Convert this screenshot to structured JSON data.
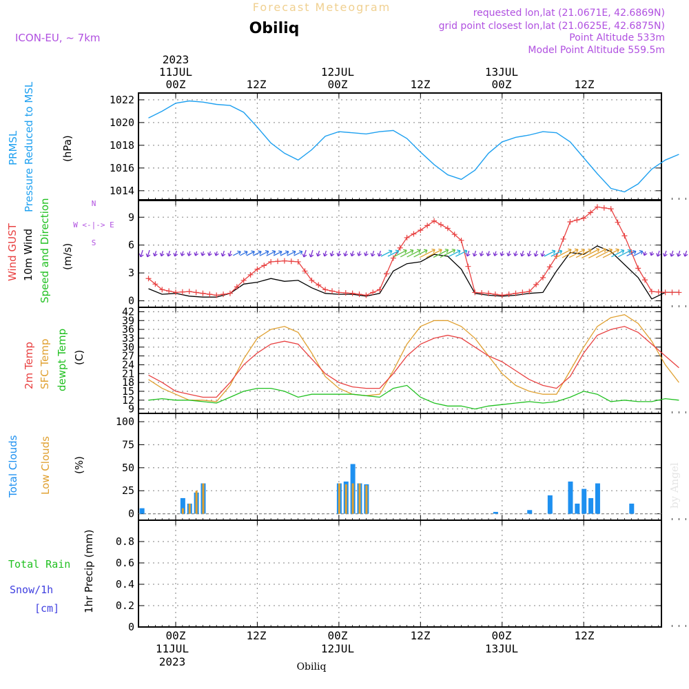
{
  "header": {
    "title": "Forecast Meteogram",
    "station": "Obiliq",
    "model": "ICON-EU, ~ 7km",
    "requested": "requested lon,lat (21.0671E, 42.6869N)",
    "grid_point": "grid point closest lon,lat (21.0625E, 42.6875N)",
    "point_altitude": "Point Altitude 533m",
    "model_altitude": "Model Point Altitude 559.5m"
  },
  "time_axis": {
    "top_year": "2023",
    "bottom_year": "2023",
    "ticks": [
      "00Z",
      "12Z",
      "00Z",
      "12Z",
      "00Z",
      "12Z"
    ],
    "dates": [
      "11JUL",
      "12JUL",
      "13JUL"
    ]
  },
  "footer": {
    "station": "Obiliq",
    "watermark": "by Angel"
  },
  "panels": {
    "pressure": {
      "label1": "PRMSL",
      "label2": "Pressure Reduced to MSL",
      "unit": "(hPa)"
    },
    "wind": {
      "label_gust": "Wind GUST",
      "label_wind": "10m Wind",
      "label_dir": "Speed and Direction",
      "unit": "(m/s)",
      "compass_n": "N",
      "compass_s": "S",
      "compass_ew": "W <-|-> E"
    },
    "temp": {
      "label_t2m": "2m Temp",
      "label_sfc": "SFC Temp",
      "label_dew": "dewpt Temp",
      "unit": "(C)"
    },
    "clouds": {
      "label_total": "Total Clouds",
      "label_low": "Low Clouds",
      "unit": "(%)"
    },
    "precip": {
      "label_rain": "Total  Rain",
      "label_snow": "Snow/1h",
      "label_cm": "[cm]",
      "unit": "1hr Precip (mm)"
    }
  },
  "colors": {
    "pressure": "#1ea0f0",
    "gust": "#e84040",
    "wind": "#000000",
    "t2m": "#e84040",
    "sfc": "#e0a030",
    "dew": "#20c020",
    "total_cloud": "#1e90f0",
    "low_cloud": "#e0a030",
    "rain": "#20c020",
    "snow": "#4040e0",
    "header_purple": "#b050e0",
    "title_gold": "#f0d090"
  },
  "chart_data": [
    {
      "type": "line",
      "name": "PRMSL",
      "unit": "hPa",
      "x_hours": [
        -4,
        -2,
        0,
        2,
        4,
        6,
        8,
        10,
        12,
        14,
        16,
        18,
        20,
        22,
        24,
        26,
        28,
        30,
        32,
        34,
        36,
        38,
        40,
        42,
        44,
        46,
        48,
        50,
        52,
        54,
        56,
        58,
        60,
        62,
        64,
        66,
        68,
        70,
        72,
        74
      ],
      "values": [
        1020.4,
        1021.0,
        1021.7,
        1021.9,
        1021.8,
        1021.6,
        1021.5,
        1020.9,
        1019.6,
        1018.2,
        1017.3,
        1016.7,
        1017.6,
        1018.8,
        1019.2,
        1019.1,
        1019.0,
        1019.2,
        1019.3,
        1018.6,
        1017.4,
        1016.3,
        1015.4,
        1015.0,
        1015.8,
        1017.3,
        1018.3,
        1018.7,
        1018.9,
        1019.2,
        1019.1,
        1018.3,
        1016.9,
        1015.5,
        1014.2,
        1013.9,
        1014.6,
        1015.9,
        1016.7,
        1017.2
      ],
      "ylim": [
        1013.2,
        1022.6
      ],
      "yticks": [
        1014,
        1016,
        1018,
        1020,
        1022
      ]
    },
    {
      "type": "line",
      "name": "Wind",
      "unit": "m/s",
      "x_hours": [
        -4,
        -2,
        0,
        2,
        4,
        6,
        8,
        10,
        12,
        14,
        16,
        18,
        20,
        22,
        24,
        26,
        28,
        30,
        32,
        34,
        36,
        38,
        40,
        42,
        44,
        46,
        48,
        50,
        52,
        54,
        56,
        58,
        60,
        62,
        64,
        66,
        68,
        70,
        72,
        74
      ],
      "gust": [
        2.4,
        1.2,
        0.9,
        1.0,
        0.8,
        0.6,
        0.8,
        2.2,
        3.4,
        4.2,
        4.3,
        4.2,
        2.2,
        1.2,
        0.9,
        0.8,
        0.6,
        1.2,
        4.6,
        6.8,
        7.6,
        8.6,
        7.8,
        6.5,
        0.9,
        0.8,
        0.6,
        0.8,
        1.0,
        2.5,
        4.8,
        8.5,
        8.9,
        10.1,
        9.9,
        7.0,
        3.5,
        1.0,
        0.9,
        0.9
      ],
      "wind10m": [
        1.3,
        0.7,
        0.8,
        0.5,
        0.4,
        0.4,
        0.8,
        1.8,
        2.0,
        2.4,
        2.1,
        2.2,
        1.4,
        0.8,
        0.7,
        0.7,
        0.5,
        0.8,
        3.2,
        4.0,
        4.2,
        5.0,
        4.8,
        3.4,
        0.8,
        0.6,
        0.5,
        0.6,
        0.8,
        0.9,
        3.2,
        5.2,
        5.0,
        5.9,
        5.3,
        3.9,
        2.5,
        0.2,
        0.9,
        0.9
      ],
      "ylim": [
        -0.7,
        10.8
      ],
      "yticks": [
        0,
        3,
        6,
        9
      ]
    },
    {
      "type": "line",
      "name": "Temperature",
      "unit": "C",
      "x_hours": [
        -4,
        -2,
        0,
        2,
        4,
        6,
        8,
        10,
        12,
        14,
        16,
        18,
        20,
        22,
        24,
        26,
        28,
        30,
        32,
        34,
        36,
        38,
        40,
        42,
        44,
        46,
        48,
        50,
        52,
        54,
        56,
        58,
        60,
        62,
        64,
        66,
        68,
        70,
        72,
        74
      ],
      "t2m": [
        20.5,
        18,
        15,
        14,
        13,
        13,
        18,
        24,
        28,
        31,
        32,
        31,
        26,
        21,
        18,
        16.5,
        16,
        16,
        21,
        27,
        31,
        33,
        34,
        33,
        30,
        27,
        25,
        22,
        19,
        17,
        16,
        20,
        28,
        34,
        36,
        37,
        35,
        31,
        27,
        23
      ],
      "sfc": [
        19,
        16,
        14,
        12,
        12,
        11.5,
        17,
        26,
        33,
        36,
        37,
        35,
        28,
        20,
        16,
        14,
        13.5,
        14,
        22,
        31,
        37,
        39,
        39,
        37,
        33,
        27,
        21,
        17,
        15,
        14,
        14,
        22,
        30,
        37,
        40,
        41,
        38,
        32,
        24,
        18
      ],
      "dew": [
        12,
        12.5,
        12,
        12,
        11.5,
        11,
        13,
        15,
        16,
        16,
        15,
        13,
        14,
        14,
        14,
        14,
        13.5,
        13,
        16,
        17,
        13,
        11,
        10,
        10,
        9,
        10,
        10.5,
        11,
        11.5,
        11,
        11.5,
        13,
        15,
        14,
        11.5,
        12,
        11.5,
        11.5,
        12.5,
        12
      ],
      "ylim": [
        7.5,
        43.5
      ],
      "yticks": [
        9,
        12,
        15,
        18,
        21,
        24,
        27,
        30,
        33,
        36,
        39,
        42
      ]
    },
    {
      "type": "bar",
      "name": "Clouds",
      "unit": "%",
      "x_hours": [
        -5,
        0,
        1,
        2,
        3,
        4,
        5,
        6,
        23,
        24,
        25,
        26,
        27,
        28,
        29,
        30,
        47,
        52,
        55,
        58,
        59,
        60,
        61,
        62,
        63,
        67
      ],
      "total": [
        6,
        0,
        17,
        11,
        23,
        33,
        0,
        0,
        0,
        33,
        35,
        54,
        33,
        32,
        0,
        0,
        2,
        4,
        20,
        35,
        11,
        27,
        17,
        33,
        0,
        11
      ],
      "low": [
        0,
        0,
        6,
        11,
        25,
        33,
        0,
        0,
        0,
        33,
        32,
        33,
        33,
        31,
        0,
        0,
        0,
        0,
        0,
        0,
        0,
        0,
        0,
        0,
        0,
        0
      ],
      "ylim": [
        -7,
        109
      ],
      "yticks": [
        0,
        25,
        50,
        75,
        100
      ]
    },
    {
      "type": "line",
      "name": "Precipitation",
      "unit": "mm",
      "x_hours": [
        -5,
        75
      ],
      "rain": [
        0,
        0
      ],
      "snow": [
        0,
        0
      ],
      "ylim": [
        0,
        1.0
      ],
      "yticks": [
        0,
        0.2,
        0.4,
        0.6,
        0.8
      ],
      "ytick_labels": [
        "0",
        "0.2",
        "0.4",
        "0.6",
        "0.8"
      ]
    }
  ]
}
